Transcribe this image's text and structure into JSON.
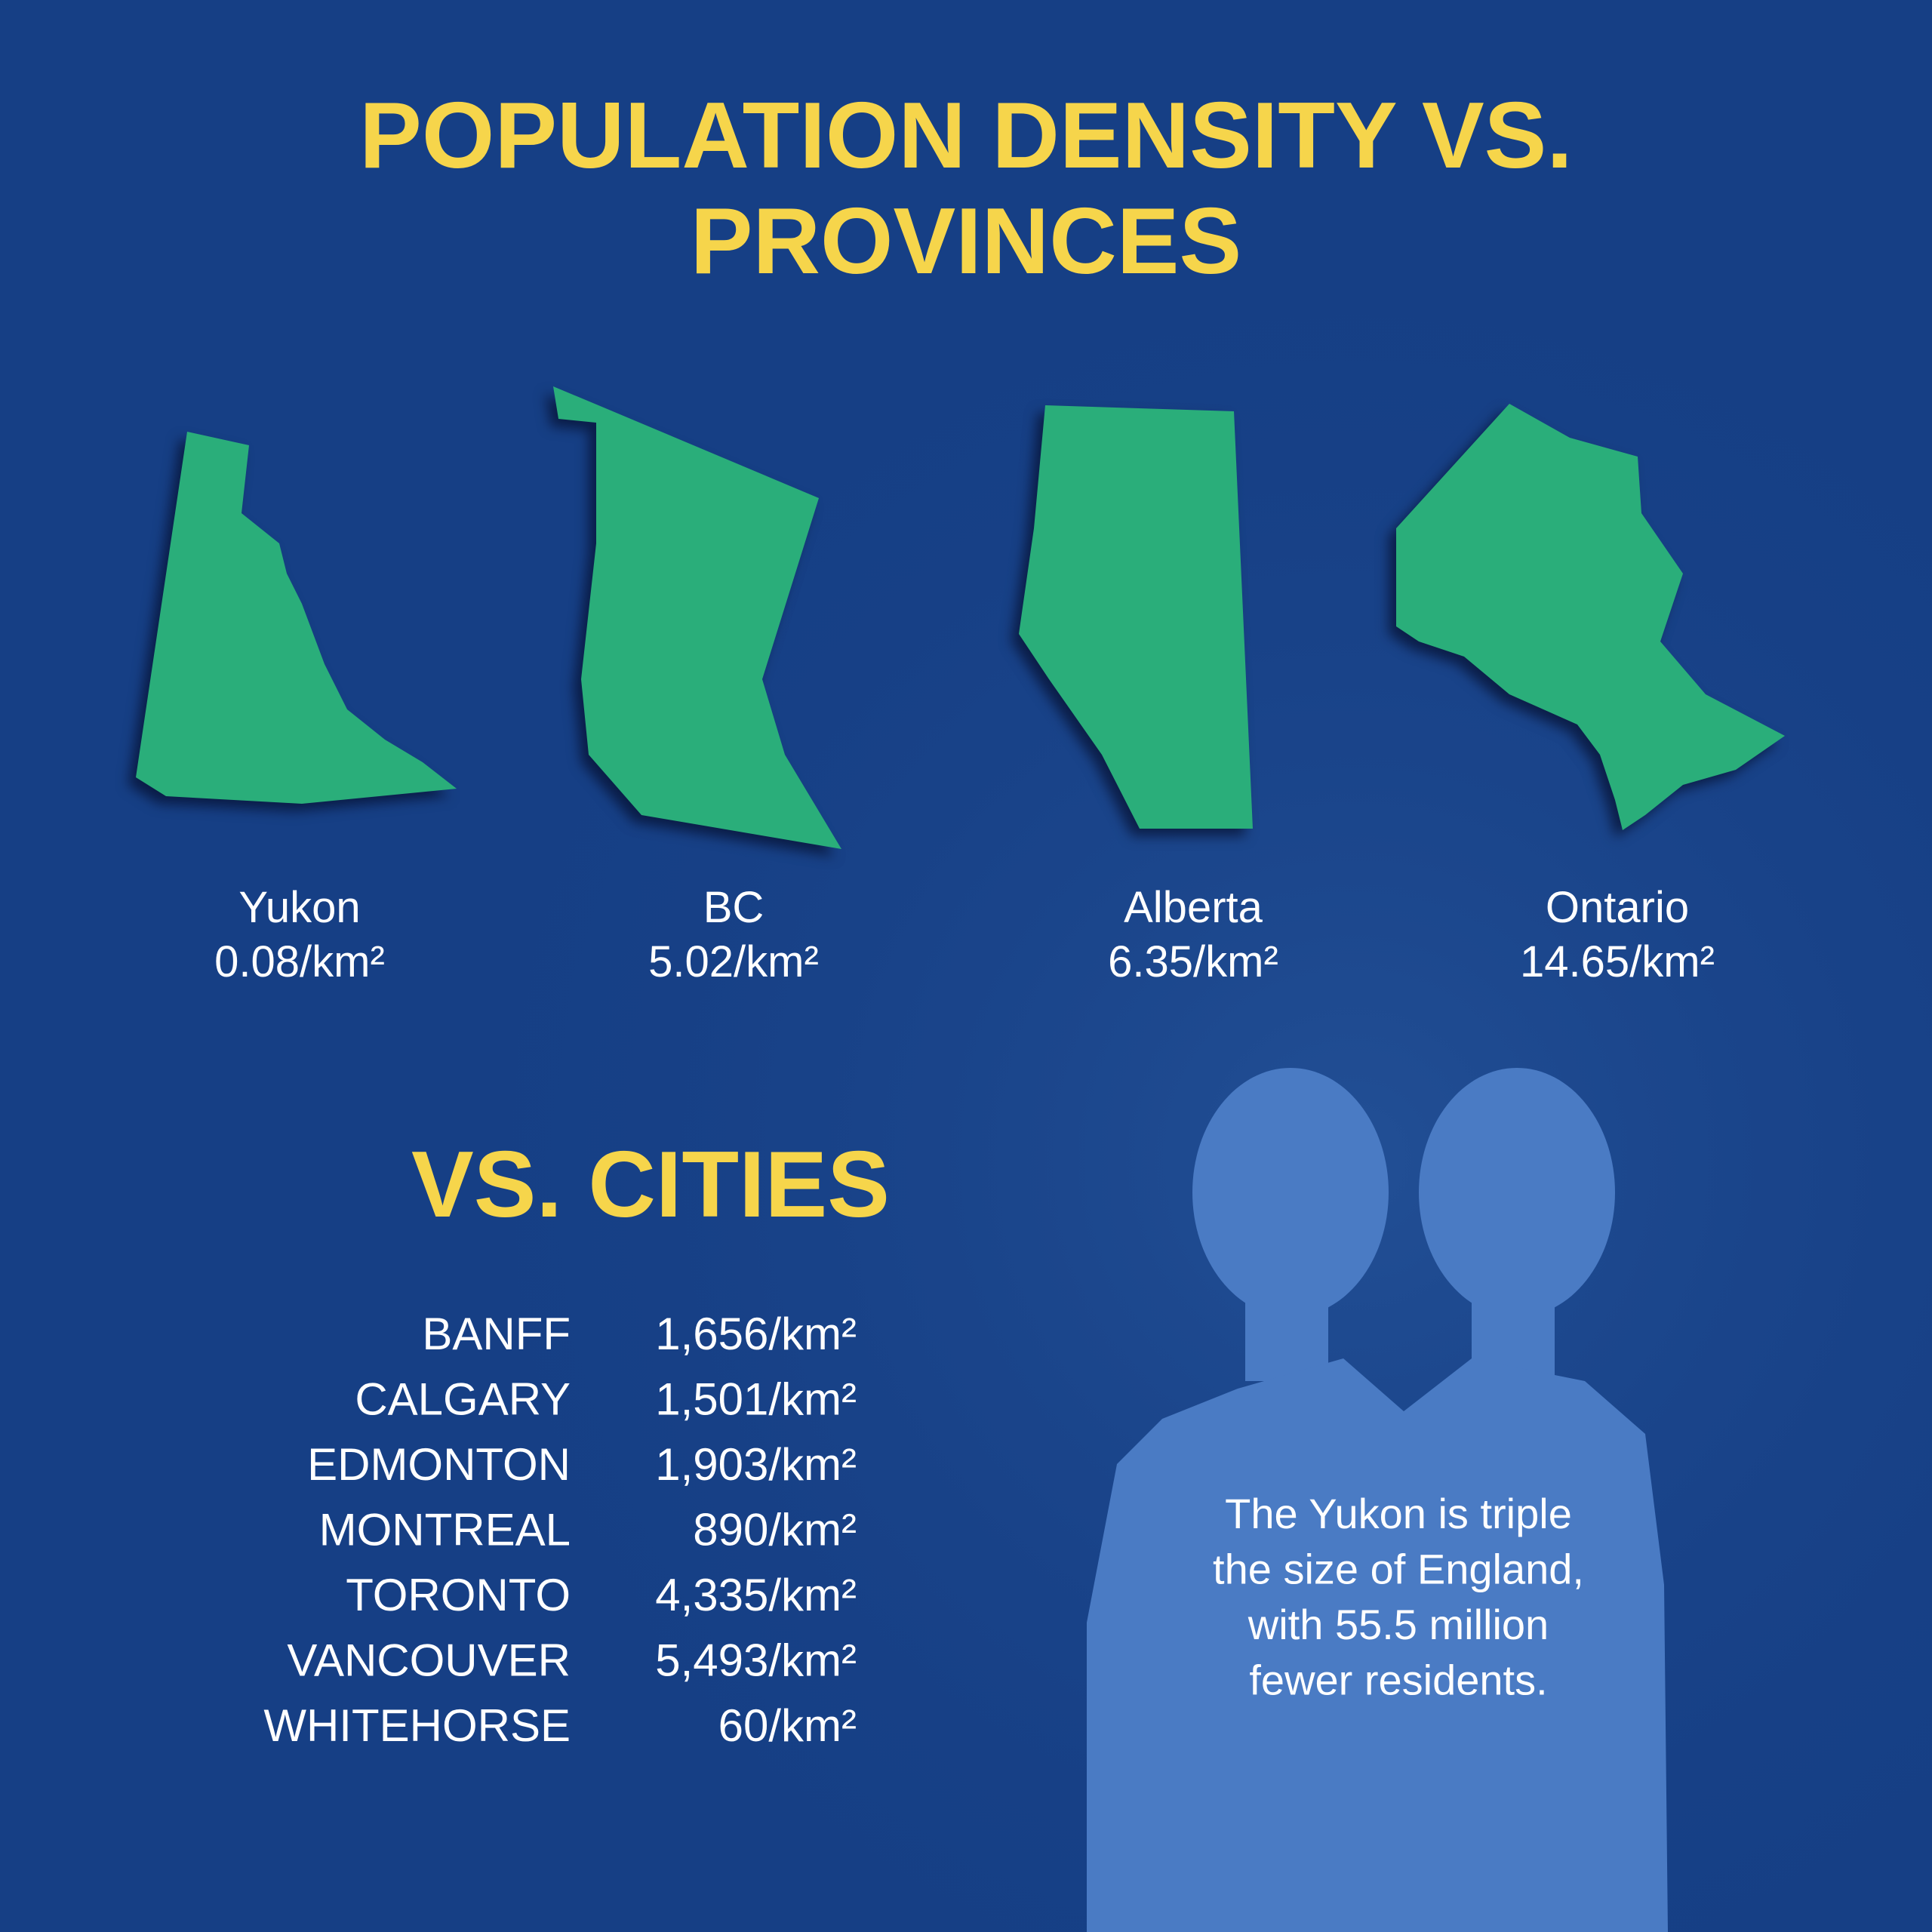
{
  "header": {
    "title": [
      "POPULATION DENSITY VS.",
      "PROVINCES"
    ]
  },
  "provinces": [
    {
      "name": "Yukon",
      "density": "0.08/km²"
    },
    {
      "name": "BC",
      "density": "5.02/km²"
    },
    {
      "name": "Alberta",
      "density": "6.35/km²"
    },
    {
      "name": "Ontario",
      "density": "14.65/km²"
    }
  ],
  "cities": {
    "title": "VS. CITIES",
    "rows": [
      [
        "BANFF",
        "1,656/km²"
      ],
      [
        "CALGARY",
        "1,501/km²"
      ],
      [
        "EDMONTON",
        "1,903/km²"
      ],
      [
        "MONTREAL",
        "890/km²"
      ],
      [
        "TORONTO",
        "4,335/km²"
      ],
      [
        "VANCOUVER",
        "5,493/km²"
      ],
      [
        "WHITEHORSE",
        "60/km²"
      ]
    ]
  },
  "note": [
    "The Yukon is triple",
    "the size of England,",
    "with 55.5 million",
    "fewer residents."
  ]
}
